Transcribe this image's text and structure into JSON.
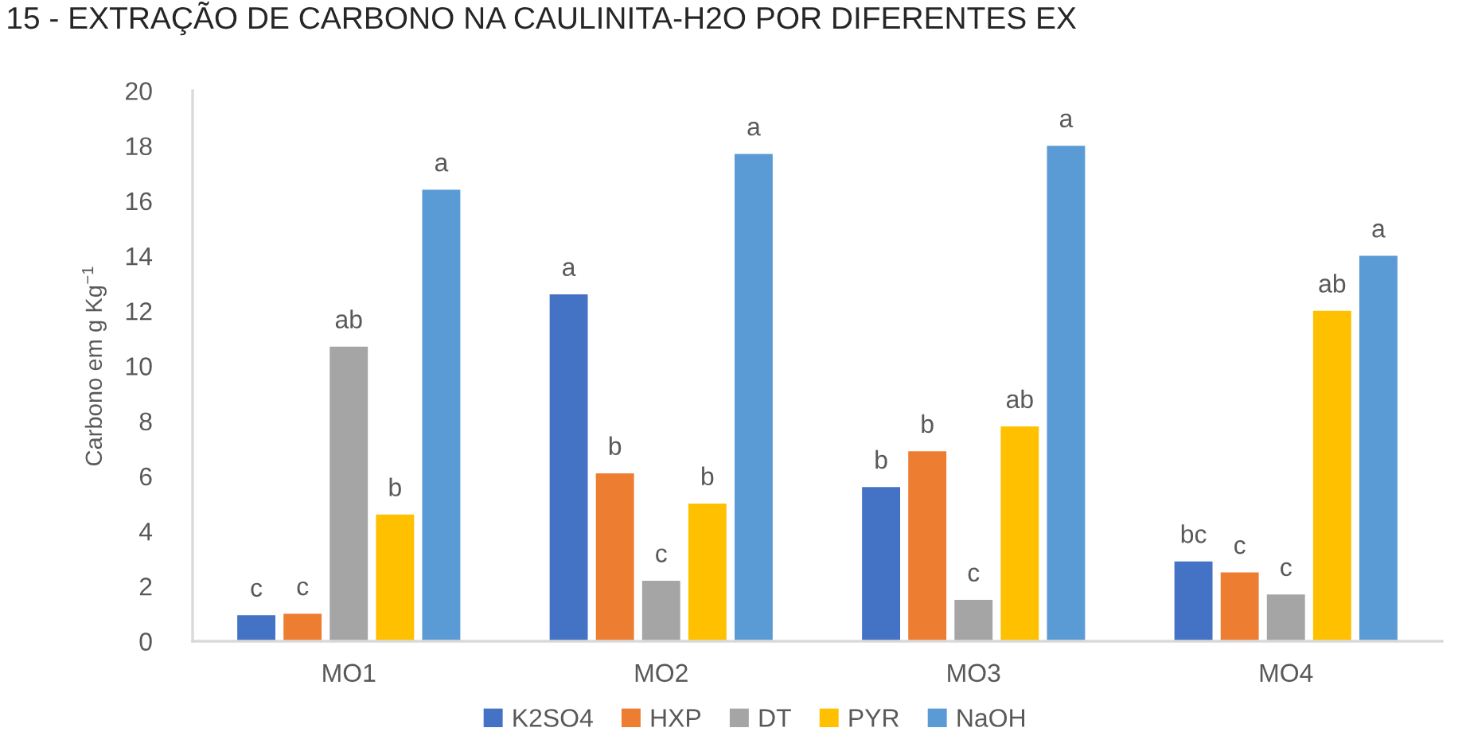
{
  "chart_data": {
    "type": "bar",
    "title": "15 - EXTRAÇÃO DE CARBONO NA CAULINITA-H2O POR DIFERENTES EX",
    "ylabel": "Carbono em g Kg$^{−1}$",
    "categories": [
      "MO1",
      "MO2",
      "MO3",
      "MO4"
    ],
    "series": [
      {
        "name": "K2SO4",
        "color": "#4472c4",
        "values": [
          0.95,
          12.6,
          5.6,
          2.9
        ],
        "value_labels": [
          "c",
          "a",
          "b",
          "bc"
        ]
      },
      {
        "name": "HXP",
        "color": "#ed7d31",
        "values": [
          1.0,
          6.1,
          6.9,
          2.5
        ],
        "value_labels": [
          "c",
          "b",
          "b",
          "c"
        ]
      },
      {
        "name": "DT",
        "color": "#a5a5a5",
        "values": [
          10.7,
          2.2,
          1.5,
          1.7
        ],
        "value_labels": [
          "ab",
          "c",
          "c",
          "c"
        ]
      },
      {
        "name": "PYR",
        "color": "#ffc000",
        "values": [
          4.6,
          5.0,
          7.8,
          12.0
        ],
        "value_labels": [
          "b",
          "b",
          "ab",
          "ab"
        ]
      },
      {
        "name": "NaOH",
        "color": "#5b9bd5",
        "values": [
          16.4,
          17.7,
          18.0,
          14.0
        ],
        "value_labels": [
          "a",
          "a",
          "a",
          "a"
        ]
      }
    ],
    "ylim": [
      0,
      20
    ],
    "yticks": [
      0,
      2,
      4,
      6,
      8,
      10,
      12,
      14,
      16,
      18,
      20
    ],
    "legend": "bottom"
  }
}
